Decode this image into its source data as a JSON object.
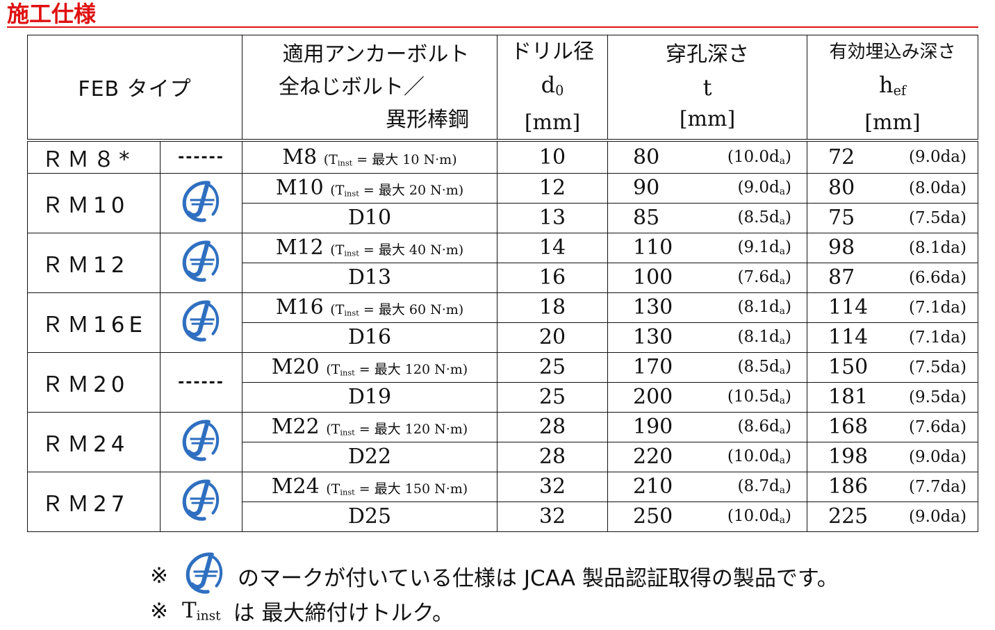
{
  "title": "施工仕様",
  "header": {
    "type_col": "FEB タイプ",
    "bolt_line1": "適用アンカーボルト",
    "bolt_line2": "全ねじボルト／",
    "bolt_line3": "異形棒鋼",
    "drill_jp": "ドリル径",
    "drill_sym": "d",
    "drill_sub": "0",
    "drill_unit": "[mm]",
    "depth_jp": "穿孔深さ",
    "depth_sym": "t",
    "depth_unit": "[mm]",
    "hef_jp": "有効埋込み深さ",
    "hef_sym": "h",
    "hef_sub": "ef",
    "hef_unit": "[mm]"
  },
  "groups": [
    {
      "type": "ＲＭ８*",
      "mark": "dashes",
      "rows": [
        {
          "bolt": "M8",
          "torque": "最大 10 N·m",
          "d0": "10",
          "t": "80",
          "t_ratio": "(10.0d",
          "hef": "72",
          "hef_ratio": "(9.0da)"
        }
      ]
    },
    {
      "type": "ＲＭ10",
      "mark": "logo",
      "rows": [
        {
          "bolt": "M10",
          "torque": "最大 20 N·m",
          "d0": "12",
          "t": "90",
          "t_ratio": "(9.0d",
          "hef": "80",
          "hef_ratio": "(8.0da)"
        },
        {
          "bolt": "D10",
          "torque": "",
          "d0": "13",
          "t": "85",
          "t_ratio": "(8.5d",
          "hef": "75",
          "hef_ratio": "(7.5da)"
        }
      ]
    },
    {
      "type": "ＲＭ12",
      "mark": "logo",
      "rows": [
        {
          "bolt": "M12",
          "torque": "最大 40 N·m",
          "d0": "14",
          "t": "110",
          "t_ratio": "(9.1d",
          "hef": "98",
          "hef_ratio": "(8.1da)"
        },
        {
          "bolt": "D13",
          "torque": "",
          "d0": "16",
          "t": "100",
          "t_ratio": "(7.6d",
          "hef": "87",
          "hef_ratio": "(6.6da)"
        }
      ]
    },
    {
      "type": "ＲＭ16E",
      "mark": "logo",
      "rows": [
        {
          "bolt": "M16",
          "torque": "最大 60 N·m",
          "d0": "18",
          "t": "130",
          "t_ratio": "(8.1d",
          "hef": "114",
          "hef_ratio": "(7.1da)"
        },
        {
          "bolt": "D16",
          "torque": "",
          "d0": "20",
          "t": "130",
          "t_ratio": "(8.1d",
          "hef": "114",
          "hef_ratio": "(7.1da)"
        }
      ]
    },
    {
      "type": "ＲＭ20",
      "mark": "dashes",
      "rows": [
        {
          "bolt": "M20",
          "torque": "最大 120 N·m",
          "d0": "25",
          "t": "170",
          "t_ratio": "(8.5d",
          "hef": "150",
          "hef_ratio": "(7.5da)"
        },
        {
          "bolt": "D19",
          "torque": "",
          "d0": "25",
          "t": "200",
          "t_ratio": "(10.5d",
          "hef": "181",
          "hef_ratio": "(9.5da)"
        }
      ]
    },
    {
      "type": "ＲＭ24",
      "mark": "logo",
      "rows": [
        {
          "bolt": "M22",
          "torque": "最大 120 N·m",
          "d0": "28",
          "t": "190",
          "t_ratio": "(8.6d",
          "hef": "168",
          "hef_ratio": "(7.6da)"
        },
        {
          "bolt": "D22",
          "torque": "",
          "d0": "28",
          "t": "220",
          "t_ratio": "(10.0d",
          "hef": "198",
          "hef_ratio": "(9.0da)"
        }
      ]
    },
    {
      "type": "ＲＭ27",
      "mark": "logo",
      "rows": [
        {
          "bolt": "M24",
          "torque": "最大 150 N·m",
          "d0": "32",
          "t": "210",
          "t_ratio": "(8.7d",
          "hef": "186",
          "hef_ratio": "(7.7da)"
        },
        {
          "bolt": "D25",
          "torque": "",
          "d0": "32",
          "t": "250",
          "t_ratio": "(10.0d",
          "hef": "225",
          "hef_ratio": "(9.0da)"
        }
      ]
    }
  ],
  "labels": {
    "dashes": "------",
    "tinst_T": "T",
    "tinst_sub": "inst",
    "equals": "=",
    "ratio_sub": "a",
    "ratio_close": ")"
  },
  "notes": {
    "mark_symbol": "※",
    "note1_text": "のマークが付いている仕様は JCAA 製品認証取得の製品です。",
    "note2_T": "T",
    "note2_sub": "inst",
    "note2_text": "は 最大締付けトルク。"
  },
  "colors": {
    "title": "#e01010",
    "logo": "#2f6fc0"
  },
  "icons": {
    "jcaa_logo": "jcaa-logo-icon"
  }
}
